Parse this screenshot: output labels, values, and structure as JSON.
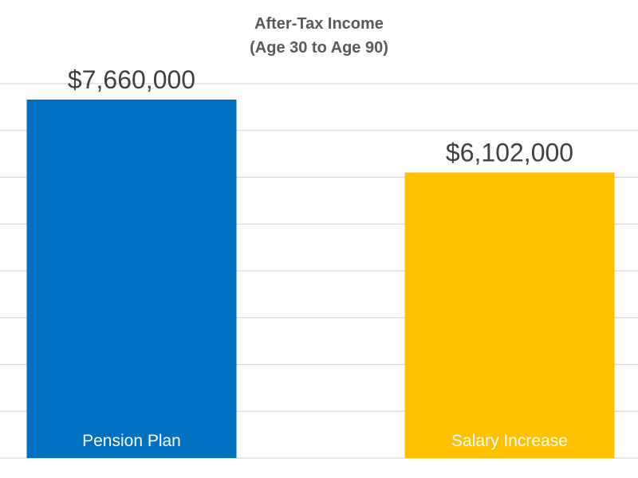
{
  "chart_data": {
    "type": "bar",
    "title": "After-Tax Income",
    "subtitle": "(Age 30 to Age 90)",
    "categories": [
      "Pension Plan",
      "Salary Increase"
    ],
    "values": [
      7660000,
      6102000
    ],
    "data_labels": [
      "$7,660,000",
      "$6,102,000"
    ],
    "colors": [
      "#0070C0",
      "#FFC000"
    ],
    "xlabel": "",
    "ylabel": "",
    "ylim": [
      0,
      9000000
    ],
    "grid": true,
    "gridline_color": "#d9d9d9",
    "legend": "none",
    "category_label_placement": "inside-bottom"
  }
}
